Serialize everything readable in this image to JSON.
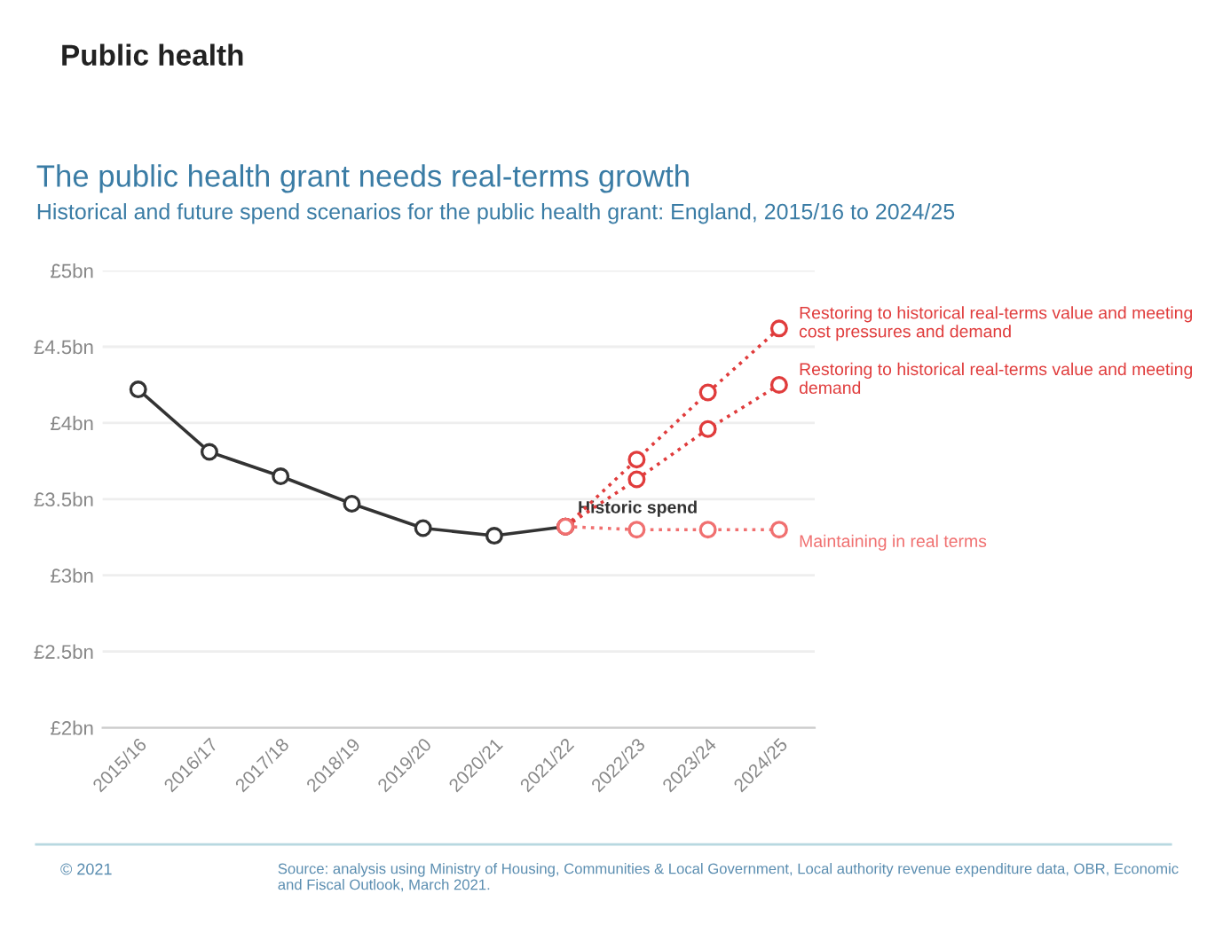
{
  "chart_data": {
    "type": "line",
    "title": "The public health grant needs real-terms growth",
    "subtitle": "Historical and future spend scenarios for the public health grant: England, 2015/16 to 2024/25",
    "categories": [
      "2015/16",
      "2016/17",
      "2017/18",
      "2018/19",
      "2019/20",
      "2020/21",
      "2021/22",
      "2022/23",
      "2023/24",
      "2024/25"
    ],
    "series": [
      {
        "name": "Historic spend",
        "color": "#333333",
        "line_style": "solid",
        "values": [
          4.22,
          3.81,
          3.65,
          3.47,
          3.31,
          3.26,
          3.32,
          null,
          null,
          null
        ]
      },
      {
        "name": "Restoring to historical real-terms value and meeting cost pressures and demand",
        "color": "#e03c3c",
        "line_style": "dotted",
        "values": [
          null,
          null,
          null,
          null,
          null,
          null,
          3.32,
          3.76,
          4.2,
          4.62
        ]
      },
      {
        "name": "Restoring to historical real-terms value and meeting demand",
        "color": "#e03c3c",
        "line_style": "dotted",
        "values": [
          null,
          null,
          null,
          null,
          null,
          null,
          3.32,
          3.63,
          3.96,
          4.25
        ]
      },
      {
        "name": "Maintaining in real terms",
        "color": "#f07070",
        "line_style": "dotted",
        "values": [
          null,
          null,
          null,
          null,
          null,
          null,
          3.32,
          3.3,
          3.3,
          3.3
        ]
      }
    ],
    "ylim": [
      2,
      5
    ],
    "yticks": [
      {
        "value": 2,
        "label": "£2bn"
      },
      {
        "value": 2.5,
        "label": "£2.5bn"
      },
      {
        "value": 3,
        "label": "£3bn"
      },
      {
        "value": 3.5,
        "label": "£3.5bn"
      },
      {
        "value": 4,
        "label": "£4bn"
      },
      {
        "value": 4.5,
        "label": "£4.5bn"
      },
      {
        "value": 5,
        "label": "£5bn"
      }
    ],
    "grid": "y",
    "marker": "circle",
    "legend": false,
    "annotations": [
      "Public health",
      "Source: analysis using Ministry of Housing, Communities & Local Government, Local authority revenue expenditure data, OBR, Economic and Fiscal Outlook, March 2021.",
      "© 2021"
    ]
  }
}
